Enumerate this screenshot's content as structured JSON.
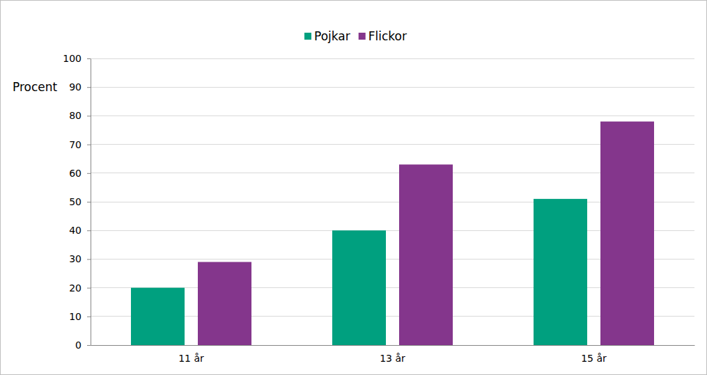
{
  "chart_data": {
    "type": "bar",
    "ylabel": "Procent",
    "categories": [
      "11 år",
      "13 år",
      "15 år"
    ],
    "series": [
      {
        "name": "Pojkar",
        "color": "#00a07f",
        "values": [
          20,
          40,
          51
        ]
      },
      {
        "name": "Flickor",
        "color": "#84368c",
        "values": [
          29,
          63,
          78
        ]
      }
    ],
    "ylim": [
      0,
      100
    ],
    "yticks": [
      0,
      10,
      20,
      30,
      40,
      50,
      60,
      70,
      80,
      90,
      100
    ],
    "grid": true,
    "legend": "top"
  }
}
